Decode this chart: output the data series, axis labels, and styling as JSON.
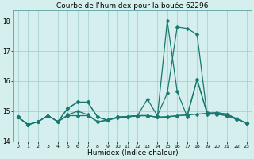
{
  "title": "Courbe de l'humidex pour la bouée 62296",
  "xlabel": "Humidex (Indice chaleur)",
  "background_color": "#d4efee",
  "grid_color": "#9ecece",
  "line_color": "#1a7870",
  "xlim": [
    -0.5,
    23.5
  ],
  "ylim": [
    14.0,
    18.35
  ],
  "yticks": [
    14,
    15,
    16,
    17,
    18
  ],
  "xticks": [
    0,
    1,
    2,
    3,
    4,
    5,
    6,
    7,
    8,
    9,
    10,
    11,
    12,
    13,
    14,
    15,
    16,
    17,
    18,
    19,
    20,
    21,
    22,
    23
  ],
  "series": [
    [
      14.8,
      14.55,
      14.65,
      14.85,
      14.65,
      14.85,
      14.85,
      14.85,
      14.65,
      14.7,
      14.8,
      14.82,
      14.85,
      14.85,
      14.8,
      14.8,
      14.85,
      14.87,
      14.9,
      14.93,
      14.95,
      14.9,
      14.75,
      14.6
    ],
    [
      14.8,
      14.55,
      14.65,
      14.85,
      14.65,
      15.1,
      15.3,
      15.3,
      14.8,
      14.7,
      14.8,
      14.82,
      14.85,
      15.4,
      14.85,
      15.6,
      17.8,
      17.75,
      17.55,
      14.9,
      14.9,
      14.85,
      14.73,
      14.6
    ],
    [
      14.8,
      14.55,
      14.65,
      14.85,
      14.65,
      15.1,
      15.3,
      15.3,
      14.8,
      14.7,
      14.8,
      14.82,
      14.85,
      14.85,
      14.8,
      18.0,
      15.65,
      14.82,
      16.05,
      14.95,
      14.9,
      14.85,
      14.73,
      14.6
    ],
    [
      14.8,
      14.55,
      14.65,
      14.85,
      14.65,
      14.88,
      15.0,
      14.88,
      14.65,
      14.7,
      14.78,
      14.8,
      14.85,
      14.85,
      14.8,
      14.82,
      14.85,
      14.87,
      16.05,
      14.93,
      14.95,
      14.9,
      14.73,
      14.6
    ]
  ],
  "markersize": 2.5,
  "linewidth": 0.9,
  "title_fontsize": 6.5,
  "tick_fontsize": 5.5,
  "label_fontsize": 6.5
}
